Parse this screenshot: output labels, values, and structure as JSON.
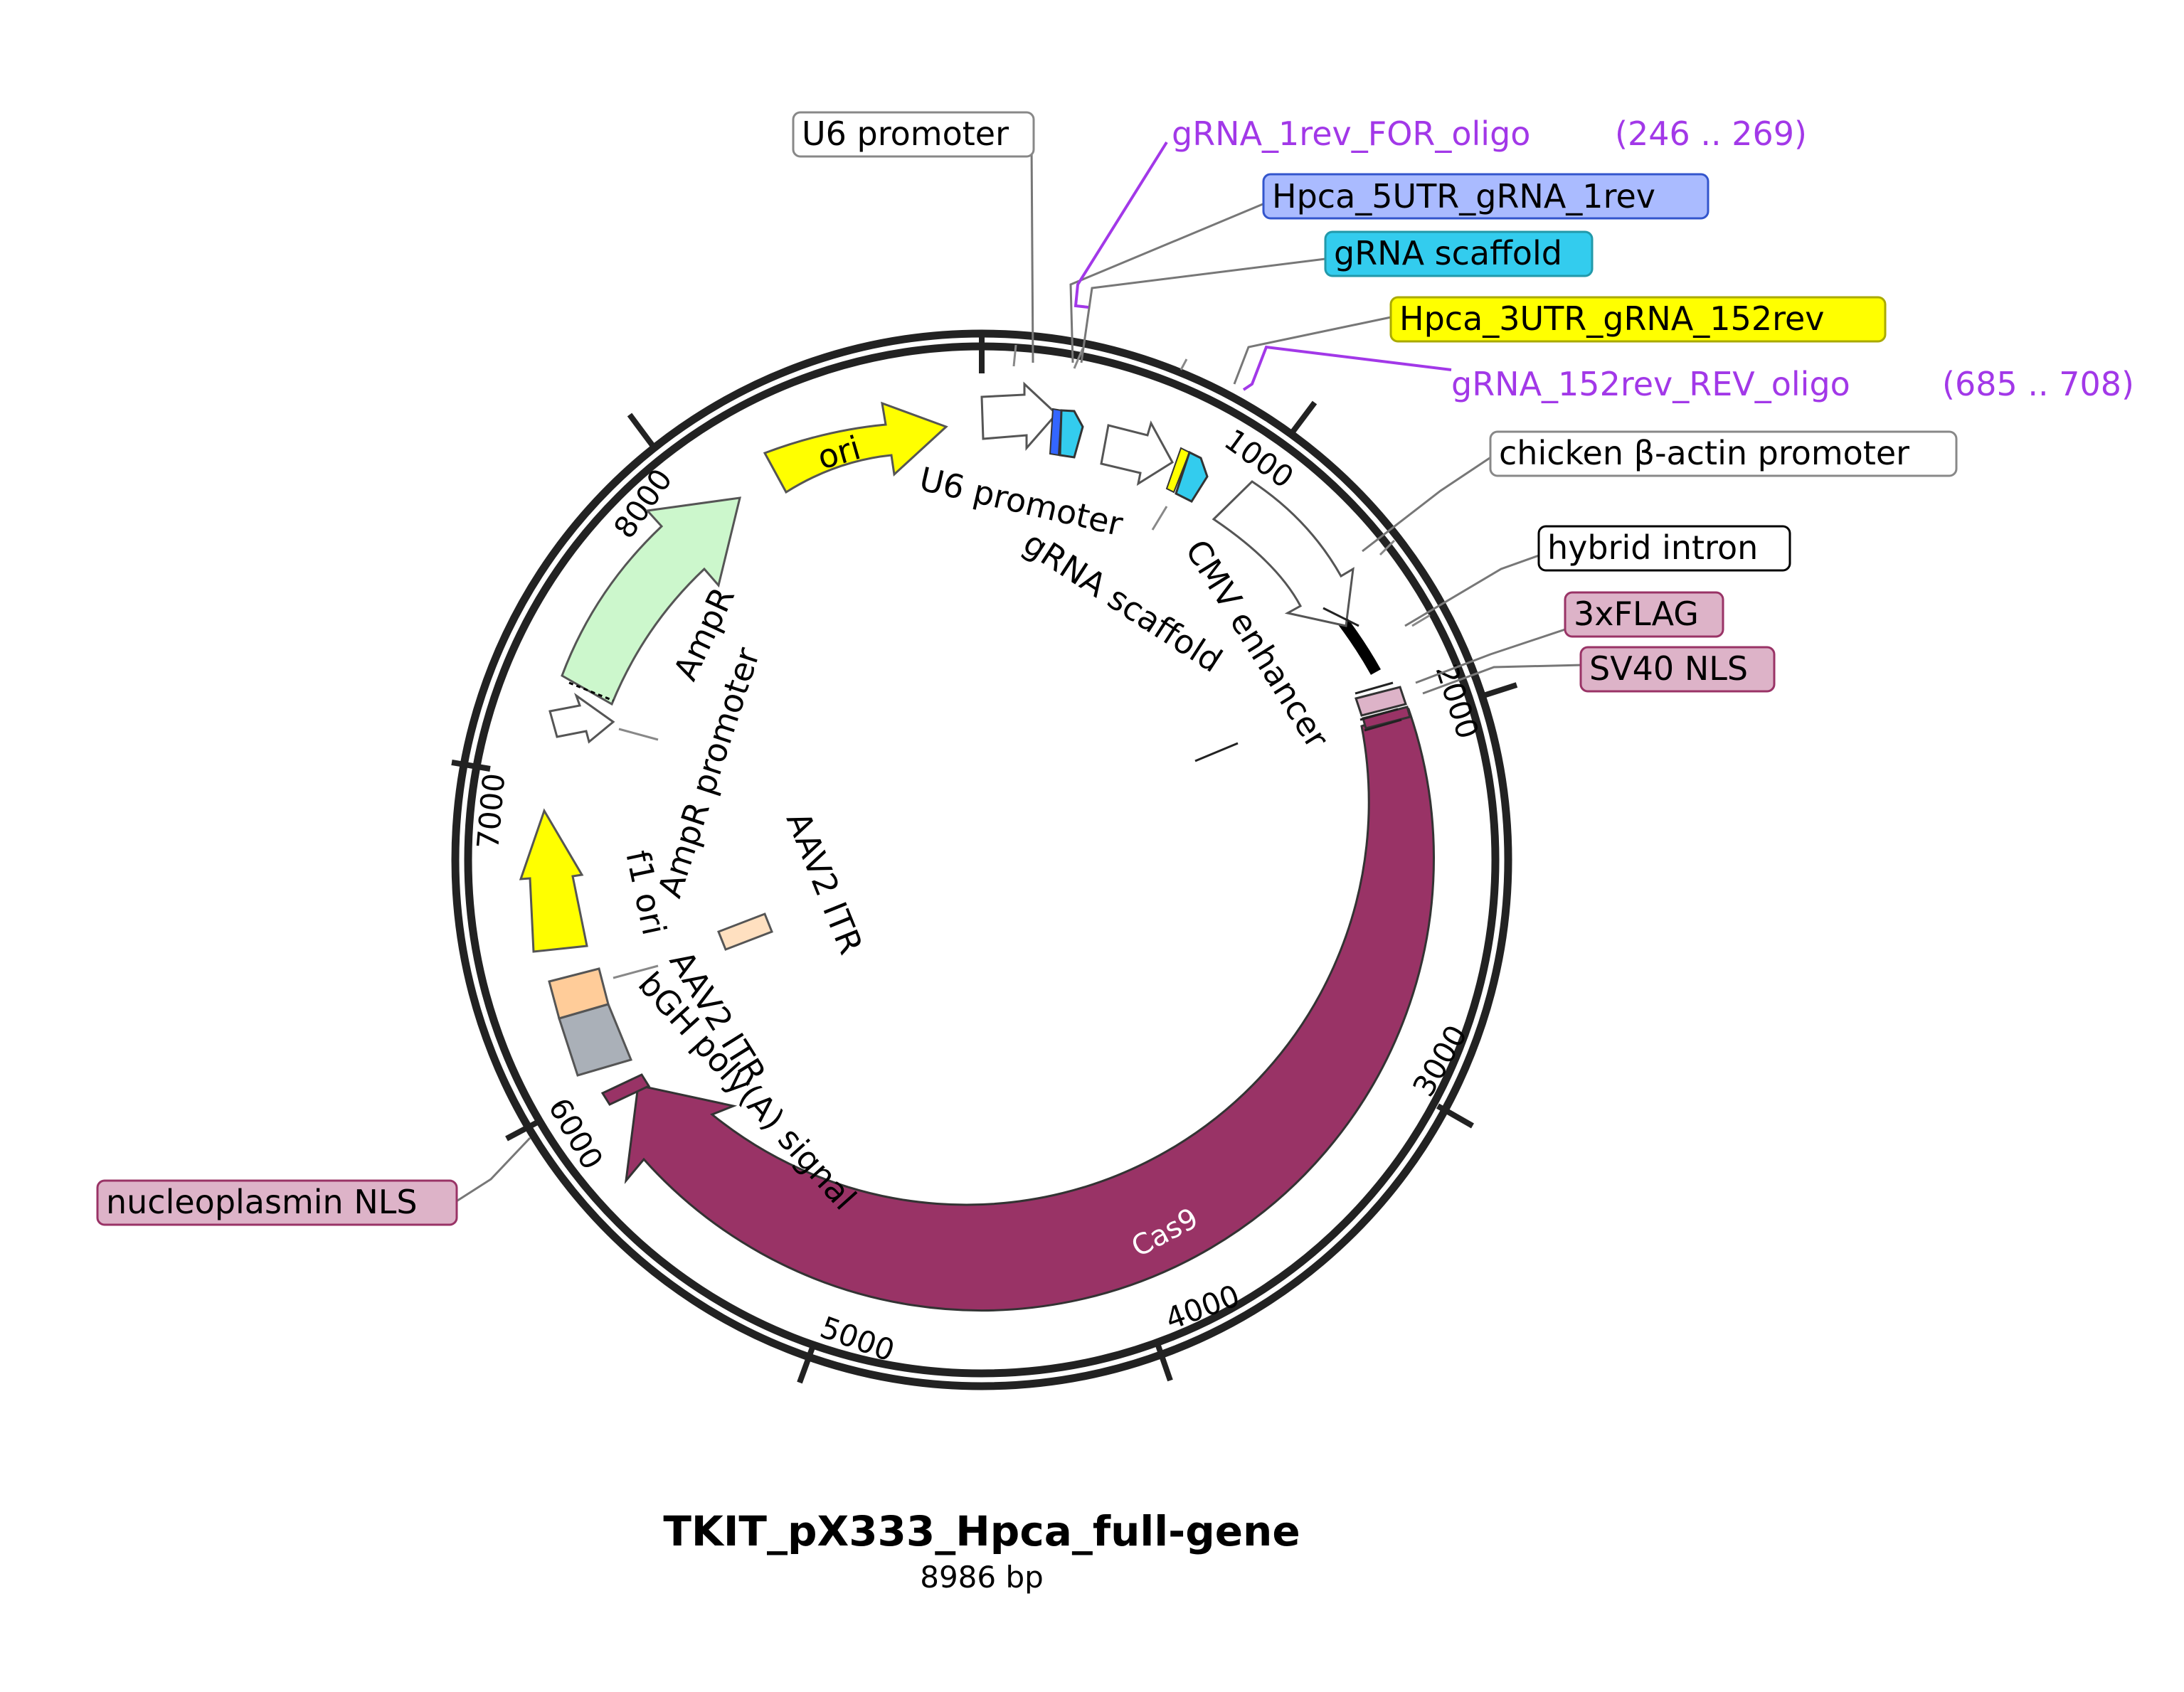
{
  "plasmid": {
    "name": "TKIT_pX333_Hpca_full-gene",
    "length_label": "8986 bp"
  },
  "ticks": [
    "1000",
    "2000",
    "3000",
    "4000",
    "5000",
    "6000",
    "7000",
    "8000"
  ],
  "features": {
    "ori": "ori",
    "cas9": "Cas9",
    "u6_promoter": "U6 promoter",
    "grna_scaffold": "gRNA scaffold",
    "cmv_enhancer": "CMV enhancer",
    "ampr": "AmpR",
    "ampr_promoter": "AmpR promoter",
    "f1_ori": "f1 ori",
    "aav2_itr_inner": "AAV2 ITR",
    "aav2_itr_outer": "AAV2 ITR",
    "bgh_polya": "bGH poly(A) signal"
  },
  "callouts": {
    "u6_promoter": "U6 promoter",
    "hpca_5utr": "Hpca_5UTR_gRNA_1rev",
    "grna_scaffold": "gRNA scaffold",
    "hpca_3utr": "Hpca_3UTR_gRNA_152rev",
    "chicken_actin": "chicken β-actin promoter",
    "hybrid_intron": "hybrid intron",
    "flag": "3xFLAG",
    "sv40_nls": "SV40 NLS",
    "nucleoplasmin_nls": "nucleoplasmin NLS"
  },
  "primers": {
    "for_oligo": {
      "name": "gRNA_1rev_FOR_oligo",
      "range": "(246 .. 269)"
    },
    "rev_oligo": {
      "name": "gRNA_152rev_REV_oligo",
      "range": "(685 .. 708)"
    }
  },
  "colors": {
    "cas9": "#993366",
    "ori": "#ffff00",
    "ampr": "#ccf7cc",
    "grna_scaffold": "#33ccee",
    "hpca_5utr": "#aabbff",
    "hpca_3utr": "#ffff00",
    "nls": "#ddb3c8",
    "aav2_itr": "#ffcc99",
    "bgh": "#aab0b8",
    "primer": "#a238e8"
  }
}
